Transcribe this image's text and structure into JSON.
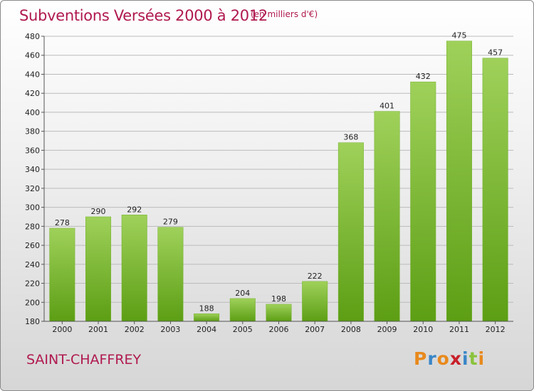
{
  "header": {
    "title": "Subventions Versées 2000 à 2012",
    "unit": "(en milliers d'€)"
  },
  "footer": {
    "commune": "SAINT-CHAFFREY",
    "logo_text": "Proxiti",
    "logo_colors": [
      "#e8891c",
      "#3a86c8",
      "#e8891c",
      "#c8202a",
      "#3a86c8",
      "#8ac33c",
      "#e8891c"
    ]
  },
  "colors": {
    "bar_light": "#9fd15a",
    "bar_dark": "#5c9e14",
    "axis": "#555555",
    "grid": "#bbbbbb"
  },
  "chart_data": {
    "type": "bar",
    "title": "Subventions Versées 2000 à 2012",
    "subtitle": "(en milliers d'€)",
    "xlabel": "",
    "ylabel": "",
    "categories": [
      "2000",
      "2001",
      "2002",
      "2003",
      "2004",
      "2005",
      "2006",
      "2007",
      "2008",
      "2009",
      "2010",
      "2011",
      "2012"
    ],
    "values": [
      278,
      290,
      292,
      279,
      188,
      204,
      198,
      222,
      368,
      401,
      432,
      475,
      457
    ],
    "ylim": [
      180,
      480
    ],
    "yticks": [
      180,
      200,
      220,
      240,
      260,
      280,
      300,
      320,
      340,
      360,
      380,
      400,
      420,
      440,
      460,
      480
    ],
    "grid": true,
    "legend": "none"
  }
}
